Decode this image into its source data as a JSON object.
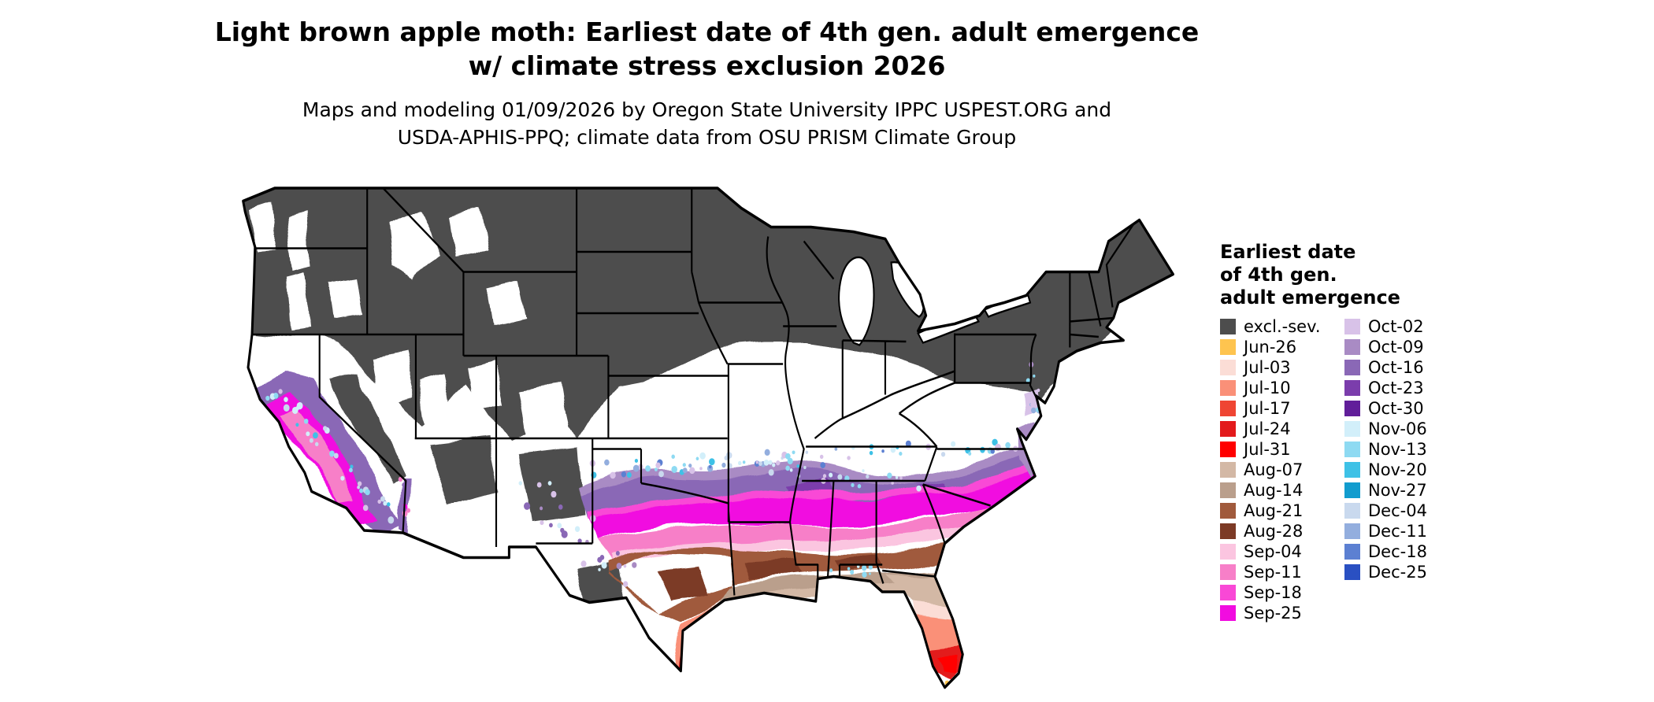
{
  "title": {
    "line1": "Light brown apple moth: Earliest date of 4th gen. adult emergence",
    "line2": "w/ climate stress exclusion 2026"
  },
  "subtitle": {
    "line1": "Maps and modeling 01/09/2026 by Oregon State University IPPC USPEST.ORG and",
    "line2": "USDA-APHIS-PPQ; climate data from OSU PRISM Climate Group"
  },
  "legend": {
    "title_lines": [
      "Earliest date",
      "of 4th gen.",
      "adult emergence"
    ],
    "columns": [
      {
        "entries": [
          {
            "label": "excl.-sev.",
            "color": "#4D4D4D"
          },
          {
            "label": "Jun-26",
            "color": "#FEC44F"
          },
          {
            "label": "Jul-03",
            "color": "#FBDDD6"
          },
          {
            "label": "Jul-10",
            "color": "#FA9078"
          },
          {
            "label": "Jul-17",
            "color": "#EF4533"
          },
          {
            "label": "Jul-24",
            "color": "#E31A1C"
          },
          {
            "label": "Jul-31",
            "color": "#FF0000"
          },
          {
            "label": "Aug-07",
            "color": "#D3B8A5"
          },
          {
            "label": "Aug-14",
            "color": "#BA9F8C"
          },
          {
            "label": "Aug-21",
            "color": "#A05A3C"
          },
          {
            "label": "Aug-28",
            "color": "#7C3A25"
          },
          {
            "label": "Sep-04",
            "color": "#FBC5E0"
          },
          {
            "label": "Sep-11",
            "color": "#F77FC8"
          },
          {
            "label": "Sep-18",
            "color": "#F948D6"
          },
          {
            "label": "Sep-25",
            "color": "#F10CE0"
          }
        ]
      },
      {
        "entries": [
          {
            "label": "Oct-02",
            "color": "#D8C2E8"
          },
          {
            "label": "Oct-09",
            "color": "#A98BC4"
          },
          {
            "label": "Oct-16",
            "color": "#8A68B6"
          },
          {
            "label": "Oct-23",
            "color": "#7B3DAC"
          },
          {
            "label": "Oct-30",
            "color": "#611E9A"
          },
          {
            "label": "Nov-06",
            "color": "#D2EFFA"
          },
          {
            "label": "Nov-13",
            "color": "#8EDAF2"
          },
          {
            "label": "Nov-20",
            "color": "#3EC1E6"
          },
          {
            "label": "Nov-27",
            "color": "#129CCE"
          },
          {
            "label": "Dec-04",
            "color": "#C9D9EE"
          },
          {
            "label": "Dec-11",
            "color": "#93AEDE"
          },
          {
            "label": "Dec-18",
            "color": "#5C80D2"
          },
          {
            "label": "Dec-25",
            "color": "#2A50C2"
          }
        ]
      }
    ]
  }
}
